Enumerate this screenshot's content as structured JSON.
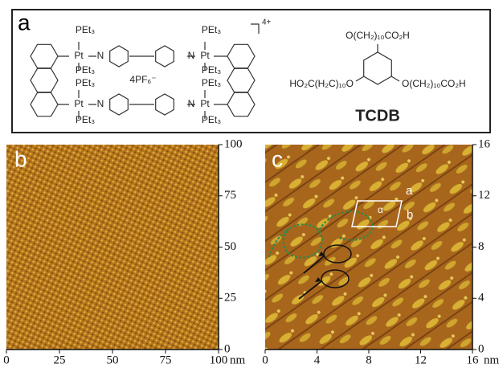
{
  "panel_labels": [
    "a",
    "b",
    "c"
  ],
  "complex": {
    "ligand_labels": [
      "PEt₃",
      "PEt₃",
      "PEt₃",
      "PEt₃",
      "PEt₃",
      "PEt₃",
      "PEt₃",
      "PEt₃"
    ],
    "metal_labels": [
      "Pt",
      "Pt",
      "Pt",
      "Pt"
    ],
    "nitrogen_labels": [
      "N",
      "N",
      "N",
      "N"
    ],
    "counterion": "4PF₆⁻",
    "charge": "4+"
  },
  "tcdb": {
    "substituents": [
      "O(CH₂)₁₀CO₂H",
      "HO₂C(H₂C)₁₀O",
      "O(CH₂)₁₀CO₂H"
    ],
    "name": "TCDB"
  },
  "images": [
    {
      "xlim": [
        0,
        100
      ],
      "ylim": [
        0,
        100
      ],
      "xticks": [
        0,
        25,
        50,
        75,
        100
      ],
      "yticks": [
        0,
        25,
        50,
        75,
        100
      ],
      "unit": "nm"
    },
    {
      "xlim": [
        0,
        16
      ],
      "ylim": [
        0,
        16
      ],
      "xticks": [
        0,
        4,
        8,
        12,
        16
      ],
      "yticks": [
        0,
        4,
        8,
        12,
        16
      ],
      "unit": "nm",
      "cell_labels": [
        "a",
        "b",
        "α"
      ]
    }
  ]
}
